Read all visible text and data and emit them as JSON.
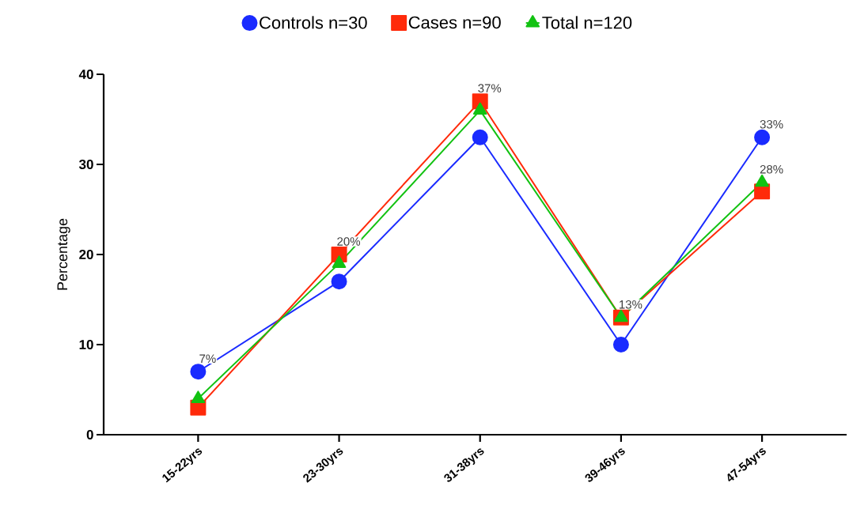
{
  "chart_data": {
    "type": "line",
    "ylabel": "Percentage",
    "categories": [
      "15-22yrs",
      "23-30yrs",
      "31-38yrs",
      "39-46yrs",
      "47-54yrs"
    ],
    "series": [
      {
        "name": "Controls n=30",
        "color": "#1a2bff",
        "marker": "circle",
        "values": [
          7,
          17,
          33,
          10,
          33
        ],
        "value_labels": [
          "7%",
          null,
          null,
          null,
          "33%"
        ]
      },
      {
        "name": "Cases n=90",
        "color": "#ff2a0a",
        "marker": "square",
        "values": [
          3,
          20,
          37,
          13,
          27
        ],
        "value_labels": [
          null,
          "20%",
          "37%",
          "13%",
          null
        ]
      },
      {
        "name": "Total n=120",
        "color": "#12c212",
        "marker": "triangle",
        "values": [
          4,
          19,
          36,
          13,
          28
        ],
        "value_labels": [
          null,
          null,
          null,
          null,
          "28%"
        ]
      }
    ],
    "ylim": [
      0,
      40
    ],
    "yticks": [
      0,
      10,
      20,
      30,
      40
    ],
    "grid": false,
    "legend": "top",
    "line_style": "solid"
  }
}
